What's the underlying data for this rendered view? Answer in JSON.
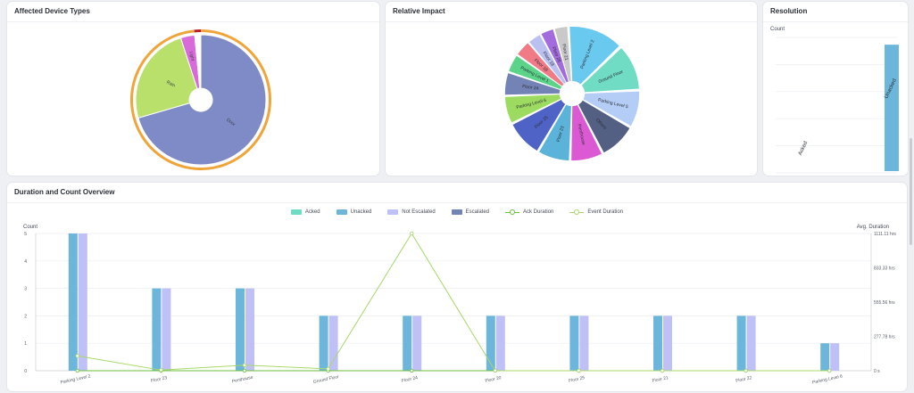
{
  "cards": {
    "device_types_title": "Affected Device Types",
    "relative_impact_title": "Relative Impact",
    "resolution_title": "Resolution",
    "overview_title": "Duration and Count Overview"
  },
  "chart_data": [
    {
      "id": "device_types",
      "type": "pie",
      "title": "Affected Device Types",
      "slices": [
        {
          "label": "Door",
          "value": 70.5,
          "color": "#7f8bc6"
        },
        {
          "label": "Rain",
          "value": 24.5,
          "color": "#b8e06a"
        },
        {
          "label": "Light",
          "value": 3.5,
          "color": "#d96ad9"
        },
        {
          "label": "",
          "value": 1.5,
          "color": "#ffffff"
        }
      ],
      "outer_ring": [
        {
          "value": 98.5,
          "color": "#f0a53a"
        },
        {
          "value": 1.5,
          "color": "#b91c2f"
        }
      ]
    },
    {
      "id": "relative_impact",
      "type": "pie",
      "title": "Relative Impact",
      "slices": [
        {
          "label": "Parking Level 2",
          "value": 12,
          "color": "#6ac9ef"
        },
        {
          "label": "Ground Floor",
          "value": 10,
          "color": "#6fdcc3"
        },
        {
          "label": "Parking Level 5",
          "value": 8,
          "color": "#b4cdf6"
        },
        {
          "label": "Others",
          "value": 8,
          "color": "#546083"
        },
        {
          "label": "Penthouse",
          "value": 7,
          "color": "#db5ad3"
        },
        {
          "label": "Floor 23",
          "value": 7,
          "color": "#5bb3da"
        },
        {
          "label": "Floor 25",
          "value": 8,
          "color": "#4f63c7"
        },
        {
          "label": "Parking Level 6",
          "value": 6,
          "color": "#9cdb5f"
        },
        {
          "label": "Floor 24",
          "value": 5,
          "color": "#7483b6"
        },
        {
          "label": "Parking Level 1",
          "value": 4,
          "color": "#5bd48a"
        },
        {
          "label": "Floor 18",
          "value": 3.5,
          "color": "#f07a86"
        },
        {
          "label": "Floor 19",
          "value": 3,
          "color": "#bac0ef"
        },
        {
          "label": "Floor 20",
          "value": 3,
          "color": "#a36cde"
        },
        {
          "label": "Floor 21",
          "value": 3,
          "color": "#c9c9c9"
        }
      ]
    },
    {
      "id": "resolution",
      "type": "bar",
      "title": "Resolution",
      "ylabel": "Count",
      "categories": [
        "Acked",
        "Unacked"
      ],
      "values": [
        0,
        28
      ],
      "ylim": [
        0,
        30
      ],
      "color": "#6cb6dc"
    },
    {
      "id": "overview",
      "type": "bar",
      "title": "Duration and Count Overview",
      "ylabel": "Count",
      "y2label": "Avg. Duration",
      "ylim": [
        0,
        5
      ],
      "yticks": [
        "0",
        "1",
        "2",
        "3",
        "4",
        "5"
      ],
      "y2lim": [
        0,
        1111.11
      ],
      "y2ticks": [
        "0 s",
        "277.78 hrs",
        "555.56 hrs",
        "833.33 hrs",
        "1111.11 hrs"
      ],
      "categories": [
        "Parking Level 2",
        "Floor 23",
        "Penthouse",
        "Ground Floor",
        "Floor 24",
        "Floor 20",
        "Floor 25",
        "Floor 21",
        "Floor 22",
        "Parking Level 6"
      ],
      "series": [
        {
          "name": "Acked",
          "kind": "bar",
          "color": "#6fdcc3",
          "values": [
            0,
            0,
            0,
            0,
            0,
            0,
            0,
            0,
            0,
            0
          ]
        },
        {
          "name": "Unacked",
          "kind": "bar",
          "color": "#6cb6dc",
          "values": [
            5,
            3,
            3,
            2,
            2,
            2,
            2,
            2,
            2,
            1
          ]
        },
        {
          "name": "Not Escalated",
          "kind": "bar",
          "color": "#bfc0f5",
          "values": [
            5,
            3,
            3,
            2,
            2,
            2,
            2,
            2,
            2,
            1
          ]
        },
        {
          "name": "Escalated",
          "kind": "bar",
          "color": "#7283b5",
          "values": [
            0,
            0,
            0,
            0,
            0,
            0,
            0,
            0,
            0,
            0
          ]
        },
        {
          "name": "Ack Duration",
          "kind": "line",
          "color": "#67c23a",
          "values": [
            0,
            0,
            0,
            0,
            0,
            0,
            0,
            0,
            0,
            0
          ]
        },
        {
          "name": "Event Duration",
          "kind": "line",
          "color": "#a8d86a",
          "values": [
            120,
            5,
            45,
            15,
            1111.11,
            0,
            0,
            0,
            0,
            0
          ]
        }
      ]
    }
  ]
}
